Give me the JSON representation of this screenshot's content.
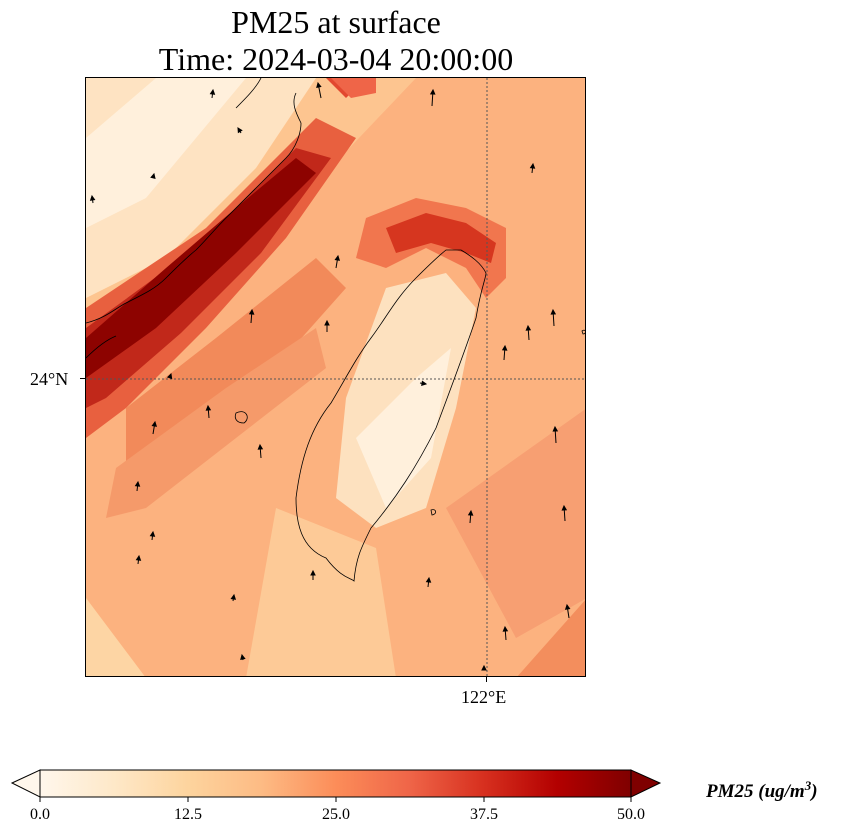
{
  "title": {
    "line1": "PM25 at surface",
    "line2": "Time: 2024-03-04 20:00:00"
  },
  "axes": {
    "lat_tick_label": "24°N",
    "lon_tick_label": "122°E",
    "gridlines": "dotted"
  },
  "colorbar": {
    "label_main": "PM25 (ug/m",
    "label_exp": "3",
    "label_end": ")",
    "ticks": [
      "0.0",
      "12.5",
      "25.0",
      "37.5",
      "50.0"
    ],
    "range": [
      0,
      50
    ],
    "extend": "both",
    "colormap": "OrRd",
    "colors": [
      "#fff7ec",
      "#fee8c8",
      "#fdd49e",
      "#fdbb84",
      "#fc8d59",
      "#ef6548",
      "#d7301f",
      "#b30000",
      "#7f0000"
    ]
  },
  "map": {
    "field": "PM25 at surface",
    "overlay": "wind vectors",
    "features": [
      "coastline",
      "Taiwan",
      "Fujian coast"
    ]
  }
}
